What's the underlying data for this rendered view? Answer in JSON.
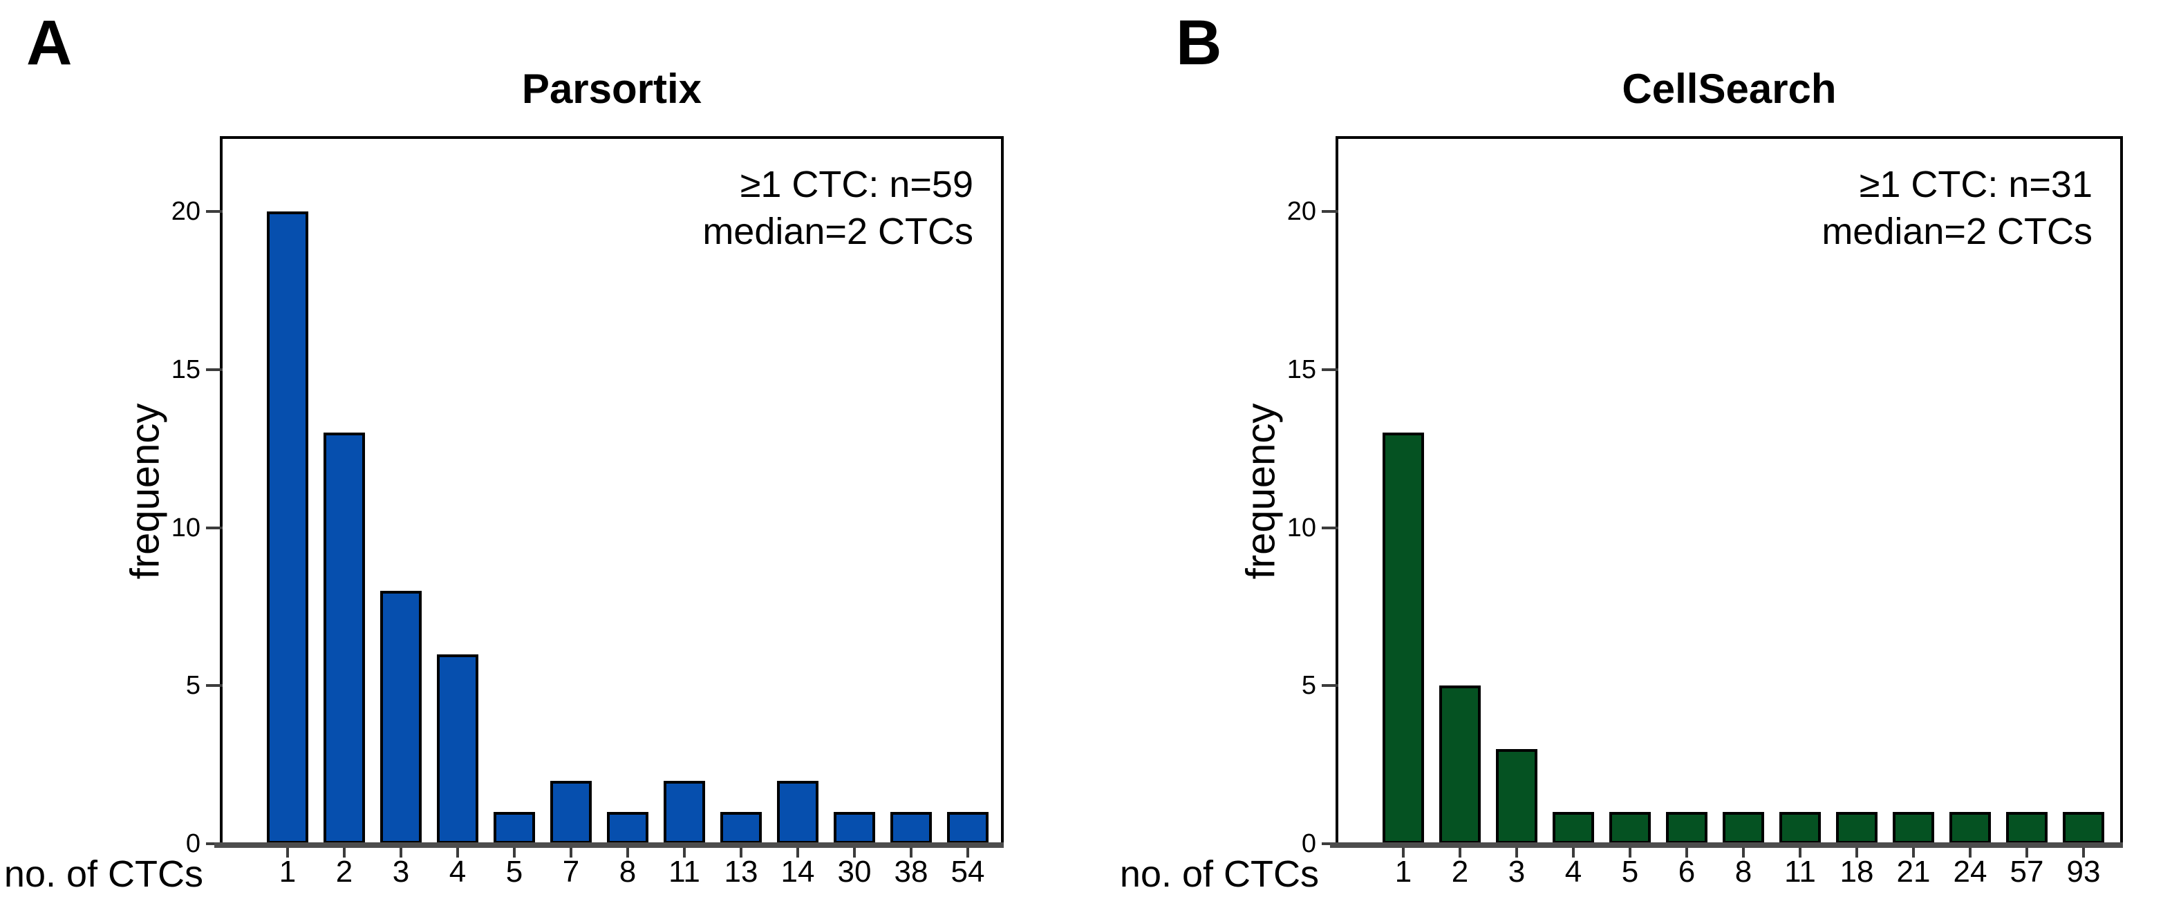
{
  "figure": {
    "background_color": "#ffffff",
    "axis_line_color": "#4d4d4d",
    "bar_border_color": "#000000"
  },
  "chart_data": [
    {
      "type": "bar",
      "panel_letter": "A",
      "title": "Parsortix",
      "annotation": [
        "≥1 CTC: n=59",
        "median=2 CTCs"
      ],
      "categories": [
        "1",
        "2",
        "3",
        "4",
        "5",
        "7",
        "8",
        "11",
        "13",
        "14",
        "30",
        "38",
        "54"
      ],
      "values": [
        20,
        13,
        8,
        6,
        1,
        2,
        1,
        2,
        1,
        2,
        1,
        1,
        1
      ],
      "xlabel": "no. of CTCs",
      "ylabel": "frequency",
      "yticks": [
        0,
        5,
        10,
        15,
        20
      ],
      "ylim": [
        0,
        22.3
      ],
      "bar_color": "#064fae",
      "grid": false,
      "legend_position": "none"
    },
    {
      "type": "bar",
      "panel_letter": "B",
      "title": "CellSearch",
      "annotation": [
        "≥1 CTC: n=31",
        "median=2 CTCs"
      ],
      "categories": [
        "1",
        "2",
        "3",
        "4",
        "5",
        "6",
        "8",
        "11",
        "18",
        "21",
        "24",
        "57",
        "93"
      ],
      "values": [
        13,
        5,
        3,
        1,
        1,
        1,
        1,
        1,
        1,
        1,
        1,
        1,
        1
      ],
      "xlabel": "no. of CTCs",
      "ylabel": "frequency",
      "yticks": [
        0,
        5,
        10,
        15,
        20
      ],
      "ylim": [
        0,
        22.3
      ],
      "bar_color": "#055222",
      "grid": false,
      "legend_position": "none"
    }
  ]
}
